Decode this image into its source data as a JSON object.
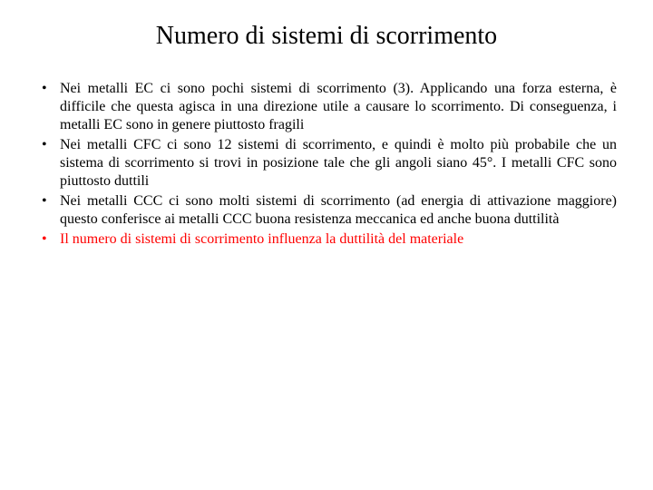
{
  "title": "Numero di sistemi di scorrimento",
  "bullets": [
    {
      "text": "Nei metalli EC ci sono pochi sistemi di scorrimento (3). Applicando una forza esterna, è difficile che questa agisca in una direzione utile a causare lo scorrimento. Di conseguenza, i metalli EC sono in genere piuttosto fragili",
      "color": "#000000"
    },
    {
      "text": "Nei metalli CFC ci sono 12 sistemi di scorrimento, e quindi è molto più probabile che un sistema di scorrimento si trovi in posizione tale che gli angoli siano 45°. I metalli CFC sono piuttosto duttili",
      "color": "#000000"
    },
    {
      "text": "Nei metalli CCC ci sono molti sistemi di scorrimento (ad energia di attivazione maggiore) questo conferisce ai metalli CCC buona resistenza meccanica ed anche buona duttilità",
      "color": "#000000"
    },
    {
      "text": "Il numero di sistemi di scorrimento influenza la duttilità del materiale",
      "color": "#ff0000"
    }
  ],
  "styles": {
    "background": "#ffffff",
    "title_fontsize": 28,
    "body_fontsize": 16,
    "font_family": "Times New Roman",
    "red": "#ff0000",
    "black": "#000000"
  }
}
